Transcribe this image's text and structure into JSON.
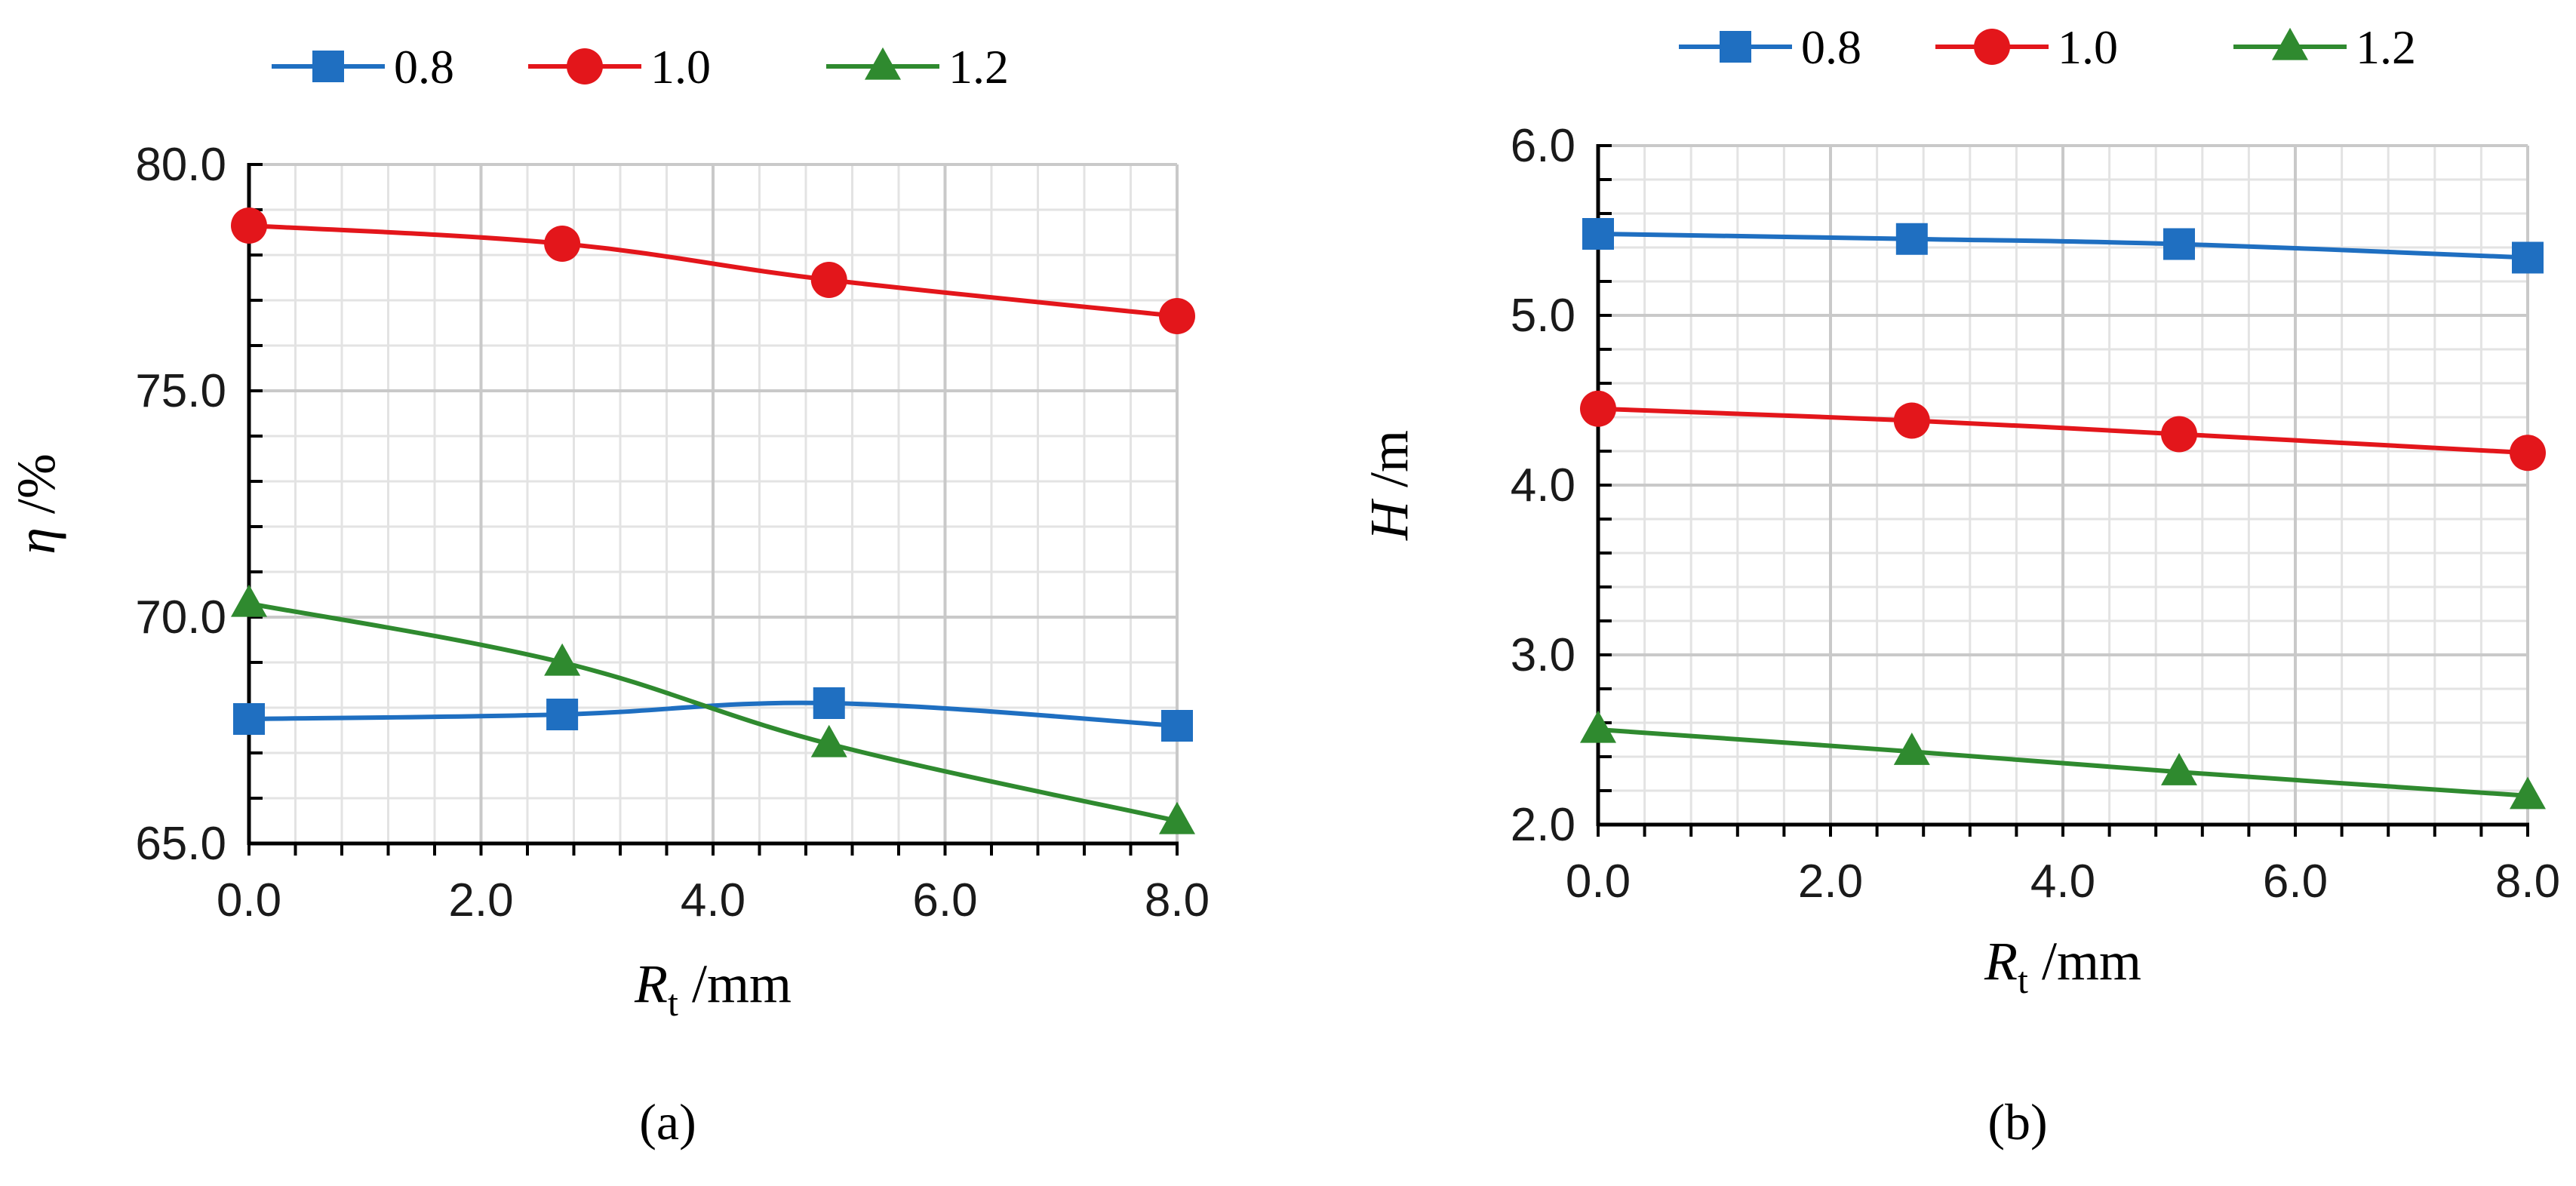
{
  "colors": {
    "blue": "#1f6fc1",
    "red": "#e3161b",
    "green": "#2f8a2f",
    "grid_major": "#c9c9c9",
    "grid_minor": "#e3e3e3",
    "axis": "#000000"
  },
  "chart_data": [
    {
      "type": "line",
      "panel": "a",
      "caption": "(a)",
      "title": "",
      "xlabel": {
        "main": "R",
        "sub": "t",
        "unit": " /mm"
      },
      "ylabel": {
        "main": "η",
        "unit": " /%"
      },
      "xlim": [
        0,
        8
      ],
      "ylim": [
        65,
        80
      ],
      "x_ticks": [
        0,
        2,
        4,
        6,
        8
      ],
      "x_tick_labels": [
        "0.0",
        "2.0",
        "4.0",
        "6.0",
        "8.0"
      ],
      "y_ticks": [
        65,
        70,
        75,
        80
      ],
      "y_tick_labels": [
        "65.0",
        "70.0",
        "75.0",
        "80.0"
      ],
      "x_minor_step": 0.4,
      "y_minor_step": 1,
      "legend": "top",
      "series": [
        {
          "name": "0.8",
          "color": "#1f6fc1",
          "marker": "square",
          "x": [
            0,
            2.7,
            5,
            8
          ],
          "values": [
            67.75,
            67.85,
            68.1,
            67.6
          ]
        },
        {
          "name": "1.0",
          "color": "#e3161b",
          "marker": "circle",
          "x": [
            0,
            2.7,
            5,
            8
          ],
          "values": [
            78.65,
            78.25,
            77.45,
            76.65
          ]
        },
        {
          "name": "1.2",
          "color": "#2f8a2f",
          "marker": "triangle",
          "x": [
            0,
            2.7,
            5,
            8
          ],
          "values": [
            70.3,
            69.0,
            67.2,
            65.5
          ]
        }
      ]
    },
    {
      "type": "line",
      "panel": "b",
      "caption": "(b)",
      "title": "",
      "xlabel": {
        "main": "R",
        "sub": "t",
        "unit": " /mm"
      },
      "ylabel": {
        "main": "H",
        "unit": " /m"
      },
      "xlim": [
        0,
        8
      ],
      "ylim": [
        2,
        6
      ],
      "x_ticks": [
        0,
        2,
        4,
        6,
        8
      ],
      "x_tick_labels": [
        "0.0",
        "2.0",
        "4.0",
        "6.0",
        "8.0"
      ],
      "y_ticks": [
        2,
        3,
        4,
        5,
        6
      ],
      "y_tick_labels": [
        "2.0",
        "3.0",
        "4.0",
        "5.0",
        "6.0"
      ],
      "x_minor_step": 0.4,
      "y_minor_step": 0.2,
      "legend": "top",
      "series": [
        {
          "name": "0.8",
          "color": "#1f6fc1",
          "marker": "square",
          "x": [
            0,
            2.7,
            5,
            8
          ],
          "values": [
            5.48,
            5.45,
            5.42,
            5.34
          ]
        },
        {
          "name": "1.0",
          "color": "#e3161b",
          "marker": "circle",
          "x": [
            0,
            2.7,
            5,
            8
          ],
          "values": [
            4.45,
            4.38,
            4.3,
            4.19
          ]
        },
        {
          "name": "1.2",
          "color": "#2f8a2f",
          "marker": "triangle",
          "x": [
            0,
            2.7,
            5,
            8
          ],
          "values": [
            2.56,
            2.43,
            2.31,
            2.17
          ]
        }
      ]
    }
  ]
}
